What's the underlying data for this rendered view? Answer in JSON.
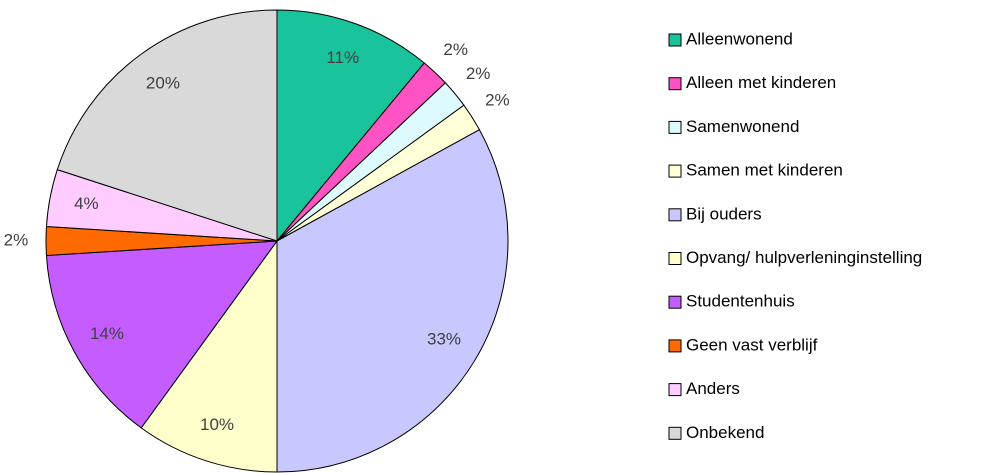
{
  "chart_data": {
    "type": "pie",
    "categories": [
      "Alleenwonend",
      "Alleen met kinderen",
      "Samenwonend",
      "Samen met kinderen",
      "Bij ouders",
      "Opvang/ hulpverleninginstelling",
      "Studentenhuis",
      "Geen vast verblijf",
      "Anders",
      "Onbekend"
    ],
    "values": [
      11,
      2,
      2,
      2,
      33,
      10,
      14,
      2,
      4,
      20
    ],
    "value_labels": [
      "11%",
      "2%",
      "2%",
      "2%",
      "33%",
      "10%",
      "14%",
      "2%",
      "4%",
      "20%"
    ],
    "colors": [
      "#19c39b",
      "#ff52c3",
      "#ddfbff",
      "#ffffd8",
      "#c8c8ff",
      "#ffffcc",
      "#c55cff",
      "#ff6a00",
      "#ffccff",
      "#d9d9d9"
    ],
    "legend": "right"
  }
}
